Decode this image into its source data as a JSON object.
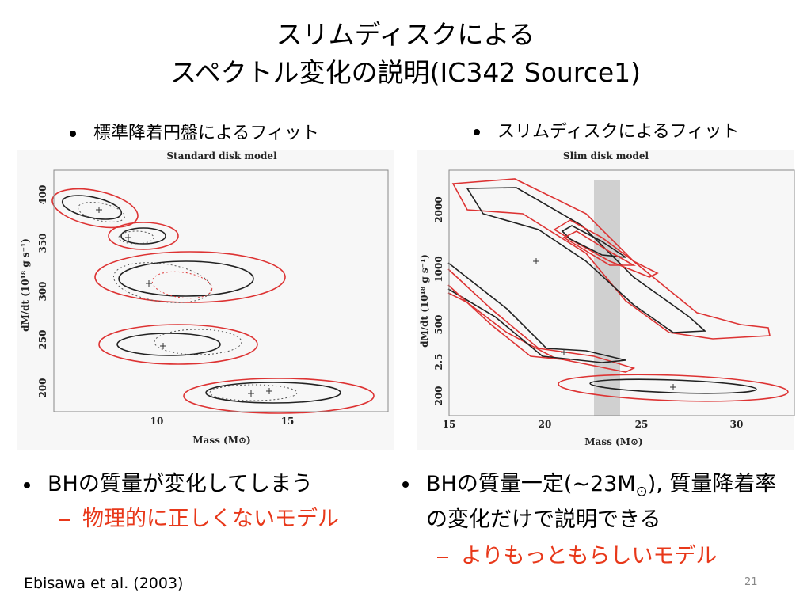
{
  "title": {
    "line1": "スリムディスクによる",
    "line2": "スペクトル変化の説明(IC342 Source1)"
  },
  "left": {
    "heading": "標準降着円盤によるフィット",
    "figure": {
      "title": "Standard disk model",
      "xlabel": "Mass (M⊙)",
      "ylabel": "dM/dt (10¹⁸ g s⁻¹)",
      "xticks": [
        "10",
        "15"
      ],
      "yticks": [
        "400",
        "350",
        "300",
        "250",
        "200"
      ]
    },
    "bullet": "BHの質量が変化してしまう",
    "subbullet": "物理的に正しくないモデル"
  },
  "right": {
    "heading": "スリムディスクによるフィット",
    "figure": {
      "title": "Slim disk model",
      "xlabel": "Mass (M⊙)",
      "ylabel": "dM/dt (10¹⁸ g s⁻¹)",
      "xticks": [
        "15",
        "20",
        "25",
        "30"
      ],
      "yticks": [
        "2000",
        "1000",
        "500",
        "2.5",
        "200"
      ]
    },
    "bullet": {
      "part1": "BHの質量一定(~23M",
      "subscript": "⊙",
      "part2": "), 質量降着率の変化だけで説明できる"
    },
    "subbullet": "よりもっともらしいモデル"
  },
  "footer": {
    "citation": "Ebisawa et al. (2003)",
    "page": "21"
  }
}
